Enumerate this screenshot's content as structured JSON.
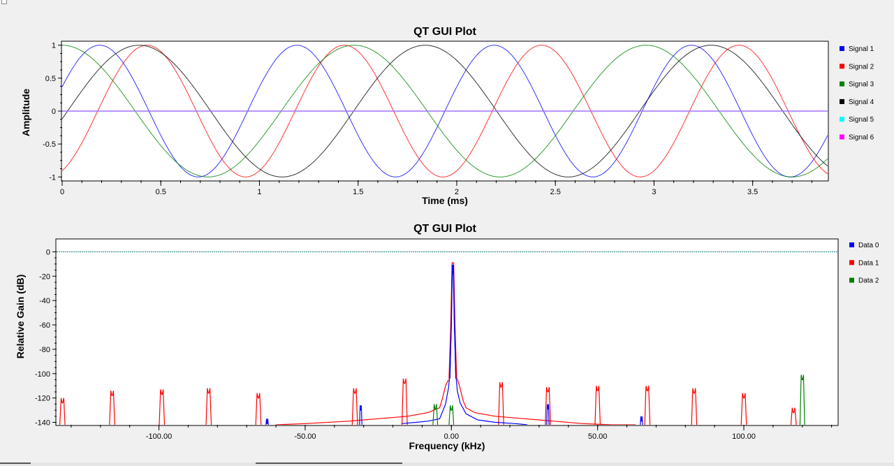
{
  "chart_data": [
    {
      "type": "line",
      "title": "QT GUI Plot",
      "xlabel": "Time (ms)",
      "ylabel": "Amplitude",
      "xlim": [
        0,
        3.88
      ],
      "ylim": [
        -1.05,
        1.05
      ],
      "xticks": [
        "0",
        "0.5",
        "1",
        "1.5",
        "2",
        "2.5",
        "3",
        "3.5"
      ],
      "xtick_values": [
        0,
        0.5,
        1,
        1.5,
        2,
        2.5,
        3,
        3.5
      ],
      "yticks": [
        "1",
        "0.5",
        "0",
        "-0.5",
        "-1"
      ],
      "ytick_values": [
        1,
        0.5,
        0,
        -0.5,
        -1
      ],
      "grid": false,
      "legend_position": "right",
      "series": [
        {
          "name": "Signal 1",
          "color": "#0000ff",
          "kind": "sine",
          "period_ms": 1.0,
          "peak_ms": 0.19
        },
        {
          "name": "Signal 2",
          "color": "#ff0000",
          "kind": "sine",
          "period_ms": 1.0,
          "peak_ms": 0.43
        },
        {
          "name": "Signal 3",
          "color": "#008000",
          "kind": "sine",
          "period_ms": 1.48,
          "peak_ms": 0.0
        },
        {
          "name": "Signal 4",
          "color": "#000000",
          "kind": "sine",
          "period_ms": 1.45,
          "peak_ms": 0.39
        },
        {
          "name": "Signal 5",
          "color": "#00ffff",
          "kind": "constant",
          "value": 0
        },
        {
          "name": "Signal 6",
          "color": "#ff00ff",
          "kind": "constant",
          "value": 0
        }
      ],
      "constant_line_color": "#a070ff"
    },
    {
      "type": "line",
      "title": "QT GUI Plot",
      "xlabel": "Frequency (kHz)",
      "ylabel": "Relative Gain (dB)",
      "xlim": [
        -135,
        132
      ],
      "ylim": [
        -142,
        10
      ],
      "xticks": [
        "-100.00",
        "-50.00",
        "0.00",
        "50.00",
        "100.00"
      ],
      "xtick_values": [
        -100,
        -50,
        0,
        50,
        100
      ],
      "yticks": [
        "0",
        "-20",
        "-40",
        "-60",
        "-80",
        "-100",
        "-120",
        "-140"
      ],
      "ytick_values": [
        0,
        -20,
        -40,
        -60,
        -80,
        -100,
        -120,
        -140
      ],
      "grid": false,
      "legend_position": "right",
      "reference_line": {
        "value": 0,
        "color": "#0b7a7a"
      },
      "series": [
        {
          "name": "Data 0",
          "color": "#0000ff",
          "main_peak": {
            "center": 0.5,
            "top": -11
          },
          "floor": [
            [
              -17,
              -141
            ],
            [
              -12,
              -140
            ],
            [
              -8,
              -139
            ],
            [
              -4,
              -137
            ],
            [
              -2,
              -125
            ],
            [
              -1,
              -112
            ],
            [
              -0.5,
              -100
            ],
            [
              0,
              -60
            ],
            [
              0.3,
              -20
            ],
            [
              0.5,
              -11
            ],
            [
              0.7,
              -20
            ],
            [
              1,
              -60
            ],
            [
              1.5,
              -100
            ],
            [
              2,
              -114
            ],
            [
              3,
              -124
            ],
            [
              5,
              -133
            ],
            [
              9,
              -138
            ],
            [
              15,
              -140
            ],
            [
              22,
              -141
            ],
            [
              26,
              -142
            ]
          ],
          "spurs": [
            [
              -31,
              -130
            ],
            [
              33,
              -129
            ],
            [
              65,
              -139
            ],
            [
              -63,
              -141
            ]
          ]
        },
        {
          "name": "Data 1",
          "color": "#ff0000",
          "main_peak": {
            "center": 0.5,
            "top": -9
          },
          "floor_left": [
            [
              -60,
              -142
            ],
            [
              -50,
              -141
            ],
            [
              -35,
              -139
            ],
            [
              -25,
              -137
            ],
            [
              -15,
              -135
            ],
            [
              -8,
              -132
            ],
            [
              -4,
              -128
            ],
            [
              -3,
              -120
            ],
            [
              -2,
              -110
            ],
            [
              -1,
              -105
            ]
          ],
          "floor_right": [
            [
              2,
              -104
            ],
            [
              3,
              -112
            ],
            [
              4,
              -122
            ],
            [
              5,
              -128
            ],
            [
              8,
              -132
            ],
            [
              15,
              -135
            ],
            [
              25,
              -137
            ],
            [
              35,
              -139
            ],
            [
              45,
              -141
            ],
            [
              55,
              -142
            ],
            [
              63,
              -142
            ]
          ],
          "spurs": [
            [
              -133,
              -124
            ],
            [
              -116,
              -118
            ],
            [
              -99,
              -117
            ],
            [
              -83,
              -116
            ],
            [
              -66,
              -120
            ],
            [
              -33,
              -116
            ],
            [
              -16,
              -108
            ],
            [
              17,
              -111
            ],
            [
              33,
              -115
            ],
            [
              50,
              -114
            ],
            [
              67,
              -114
            ],
            [
              83,
              -116
            ],
            [
              100,
              -120
            ],
            [
              117,
              -132
            ]
          ]
        },
        {
          "name": "Data 2",
          "color": "#008000",
          "spurs": [
            [
              0,
              -130
            ],
            [
              -5.5,
              -129
            ],
            [
              120,
              -105
            ]
          ]
        }
      ]
    }
  ]
}
